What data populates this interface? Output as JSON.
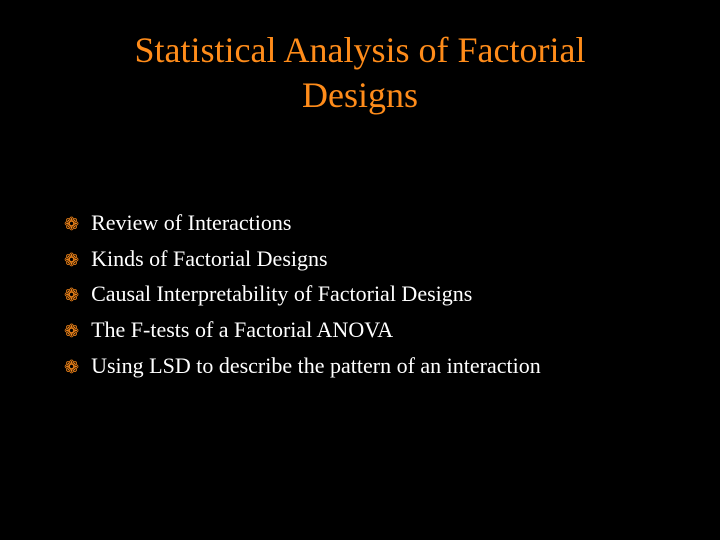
{
  "slide": {
    "title": "Statistical Analysis of Factorial Designs",
    "title_color": "#ff8c1a",
    "title_fontsize": 36,
    "background_color": "#000000",
    "bullet_icon": "❁",
    "bullet_icon_color": "#ff8c1a",
    "bullet_text_color": "#ffffff",
    "bullet_fontsize": 22,
    "bullets": [
      {
        "text": "Review of Interactions"
      },
      {
        "text": "Kinds of Factorial Designs"
      },
      {
        "text": "Causal Interpretability of Factorial Designs"
      },
      {
        "text": "The F-tests of a Factorial ANOVA"
      },
      {
        "text": "Using LSD to describe the pattern of an interaction"
      }
    ]
  }
}
